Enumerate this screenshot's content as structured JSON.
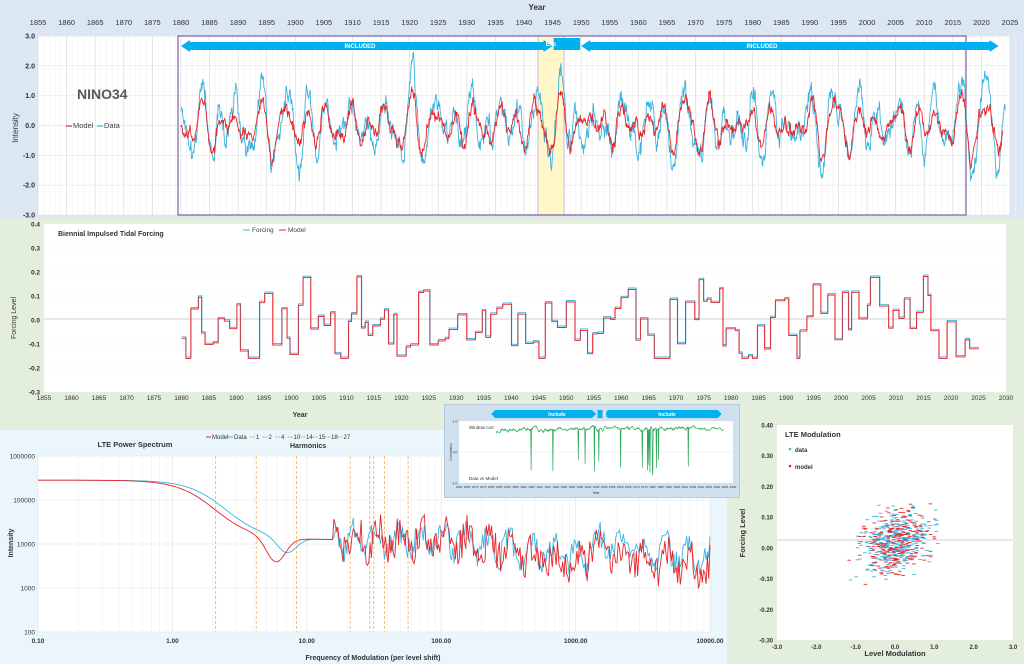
{
  "colors": {
    "model": "#e8262b",
    "data": "#3bb3df",
    "arrow": "#00b0f0",
    "corr": "#2ea85c",
    "excl": "#fff7c9",
    "frame": "#7e5fa3",
    "harm": "#f0a040"
  },
  "nino": {
    "year_label": "Year",
    "name": "NINO34",
    "ylabel": "Intensity",
    "included_left": "INCLUDED",
    "excluded": "Exc",
    "included_right": "INCLUDED",
    "legend_model": "Model",
    "legend_data": "Data",
    "x_ticks": [
      "1855",
      "1860",
      "1865",
      "1870",
      "1875",
      "1880",
      "1885",
      "1890",
      "1895",
      "1900",
      "1905",
      "1910",
      "1915",
      "1920",
      "1925",
      "1930",
      "1935",
      "1940",
      "1945",
      "1950",
      "1955",
      "1960",
      "1965",
      "1970",
      "1975",
      "1980",
      "1985",
      "1990",
      "1995",
      "2000",
      "2005",
      "2010",
      "2015",
      "2020",
      "2025"
    ],
    "y_ticks": [
      "3.0",
      "2.0",
      "1.0",
      "0.0",
      "-1.0",
      "-2.0",
      "-3.0"
    ]
  },
  "forcing": {
    "title": "Biennial Impulsed Tidal Forcing",
    "ylabel": "Forcing Level",
    "xlabel": "Year",
    "legend_forcing": "Forcing",
    "legend_model": "Model",
    "y_ticks": [
      "0.4",
      "0.3",
      "0.2",
      "0.1",
      "0.0",
      "-0.1",
      "-0.2",
      "-0.3"
    ],
    "x_ticks": [
      "1855",
      "1860",
      "1865",
      "1870",
      "1875",
      "1880",
      "1885",
      "1890",
      "1895",
      "1900",
      "1905",
      "1910",
      "1915",
      "1920",
      "1925",
      "1930",
      "1935",
      "1940",
      "1945",
      "1950",
      "1955",
      "1960",
      "1965",
      "1970",
      "1975",
      "1980",
      "1985",
      "1990",
      "1995",
      "2000",
      "2005",
      "2010",
      "2015",
      "2020",
      "2025",
      "2030"
    ]
  },
  "spectrum": {
    "title": "LTE Power Spectrum",
    "harmonics_label": "Harmonics",
    "ylabel": "Intensity",
    "xlabel": "Frequency of Modulation (per level shift)",
    "legend": [
      "Model",
      "Data",
      "1",
      "2",
      "4",
      "10",
      "14",
      "15",
      "18",
      "27"
    ],
    "y_ticks": [
      "1000000",
      "100000",
      "10000",
      "1000",
      "100"
    ],
    "x_ticks": [
      "0.10",
      "1.00",
      "10.00",
      "100.00",
      "1000.00",
      "10000.00"
    ]
  },
  "inset": {
    "include_left": "Include",
    "excl": "X",
    "include_right": "Include",
    "series_label": "Window corr",
    "caption": "Data vs Model",
    "y_ticks": [
      "1.0",
      "0.0",
      "-1.0"
    ],
    "ylabel": "Correlation",
    "x_label": "Year",
    "x_ticks": [
      "1860",
      "1865",
      "1870",
      "1875",
      "1880",
      "1885",
      "1890",
      "1895",
      "1900",
      "1905",
      "1910",
      "1915",
      "1920",
      "1925",
      "1930",
      "1935",
      "1940",
      "1945",
      "1950",
      "1955",
      "1960",
      "1965",
      "1970",
      "1975",
      "1980",
      "1985",
      "1990",
      "1995",
      "2000",
      "2005",
      "2010",
      "2015",
      "2020",
      "2025",
      "2030"
    ]
  },
  "lte": {
    "title": "LTE Modulation",
    "legend_data": "data",
    "legend_model": "model",
    "ylabel": "Forcing Level",
    "xlabel": "Level Modulation",
    "y_ticks": [
      "0.40",
      "0.30",
      "0.20",
      "0.10",
      "0.00",
      "-0.10",
      "-0.20",
      "-0.30"
    ],
    "x_ticks": [
      "-3.0",
      "-2.0",
      "-1.0",
      "0.0",
      "1.0",
      "2.0",
      "3.0"
    ]
  },
  "chart_data": [
    {
      "type": "line",
      "title": "NINO34",
      "xlabel": "Year",
      "ylabel": "Intensity",
      "xlim": [
        1855,
        2025
      ],
      "ylim": [
        -3,
        3
      ],
      "series": [
        {
          "name": "Model"
        },
        {
          "name": "Data"
        }
      ],
      "fit_ranges": [
        [
          1880,
          1945
        ],
        [
          1950,
          2023
        ]
      ],
      "excluded_range": [
        1945,
        1950
      ],
      "shape_seed": 7
    },
    {
      "type": "line",
      "title": "Biennial Impulsed Tidal Forcing",
      "xlabel": "Year",
      "ylabel": "Forcing Level",
      "xlim": [
        1855,
        2030
      ],
      "ylim": [
        -0.3,
        0.4
      ],
      "series": [
        {
          "name": "Forcing"
        },
        {
          "name": "Model"
        }
      ],
      "shape_seed": 11
    },
    {
      "type": "line",
      "title": "LTE Power Spectrum",
      "xlabel": "Frequency of Modulation (per level shift)",
      "ylabel": "Intensity",
      "x_scale": "log",
      "y_scale": "log",
      "xlim": [
        0.1,
        10000
      ],
      "ylim": [
        100,
        1000000
      ],
      "series": [
        {
          "name": "Model"
        },
        {
          "name": "Data"
        }
      ],
      "harmonics": [
        {
          "name": "1",
          "x": 2.1
        },
        {
          "name": "2",
          "x": 4.2
        },
        {
          "name": "4",
          "x": 8.4
        },
        {
          "name": "10",
          "x": 21
        },
        {
          "name": "14",
          "x": 29.4
        },
        {
          "name": "15",
          "x": 31.5
        },
        {
          "name": "18",
          "x": 37.8
        },
        {
          "name": "27",
          "x": 56.7
        }
      ],
      "shape_seed": 3
    },
    {
      "type": "scatter",
      "title": "LTE Modulation",
      "xlabel": "Level Modulation",
      "ylabel": "Forcing Level",
      "xlim": [
        -3,
        3
      ],
      "ylim": [
        -0.3,
        0.4
      ],
      "series": [
        {
          "name": "data"
        },
        {
          "name": "model"
        }
      ],
      "shape_seed": 19
    },
    {
      "type": "line",
      "title": "",
      "xlabel": "Year",
      "ylabel": "Correlation",
      "xlim": [
        1860,
        2030
      ],
      "ylim": [
        -1,
        1
      ],
      "series": [
        {
          "name": "Window corr"
        }
      ],
      "shape_seed": 23
    }
  ]
}
